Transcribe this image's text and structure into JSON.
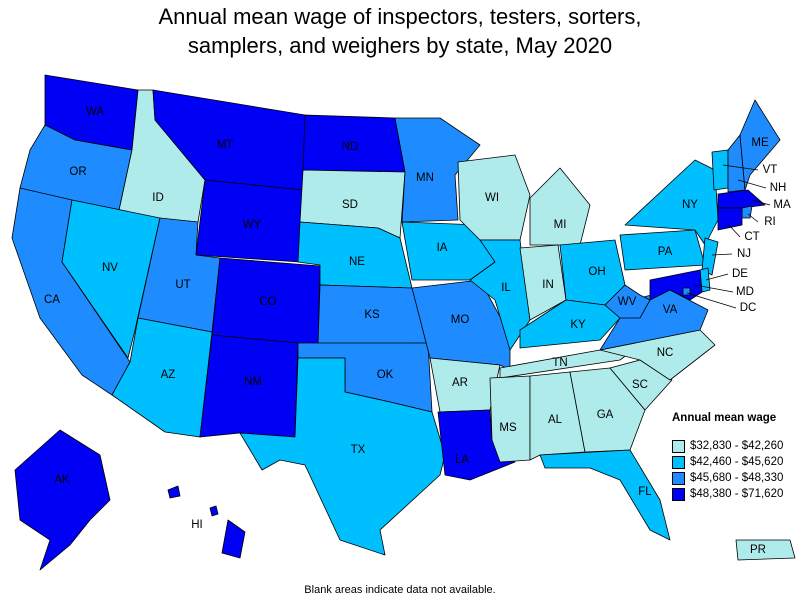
{
  "title": {
    "line1": "Annual mean wage of inspectors, testers, sorters,",
    "line2": "samplers, and weighers by state, May 2020"
  },
  "legend": {
    "title": "Annual mean wage",
    "bins": [
      {
        "label": "$32,830 - $42,260",
        "color": "#b0ebeb"
      },
      {
        "label": "$42,460 - $45,620",
        "color": "#00bfff"
      },
      {
        "label": "$45,680 - $48,330",
        "color": "#1e8cff"
      },
      {
        "label": "$48,380 - $71,620",
        "color": "#0000f5"
      }
    ]
  },
  "footnote": "Blank areas indicate data not available.",
  "chart_data": {
    "type": "choropleth",
    "states": [
      {
        "code": "WA",
        "bin": 3
      },
      {
        "code": "OR",
        "bin": 2
      },
      {
        "code": "CA",
        "bin": 2
      },
      {
        "code": "ID",
        "bin": 0
      },
      {
        "code": "NV",
        "bin": 1
      },
      {
        "code": "MT",
        "bin": 3
      },
      {
        "code": "WY",
        "bin": 3
      },
      {
        "code": "UT",
        "bin": 2
      },
      {
        "code": "AZ",
        "bin": 1
      },
      {
        "code": "CO",
        "bin": 3
      },
      {
        "code": "NM",
        "bin": 3
      },
      {
        "code": "ND",
        "bin": 3
      },
      {
        "code": "SD",
        "bin": 0
      },
      {
        "code": "NE",
        "bin": 1
      },
      {
        "code": "KS",
        "bin": 2
      },
      {
        "code": "OK",
        "bin": 2
      },
      {
        "code": "TX",
        "bin": 1
      },
      {
        "code": "MN",
        "bin": 2
      },
      {
        "code": "IA",
        "bin": 1
      },
      {
        "code": "MO",
        "bin": 2
      },
      {
        "code": "AR",
        "bin": 0
      },
      {
        "code": "LA",
        "bin": 3
      },
      {
        "code": "WI",
        "bin": 0
      },
      {
        "code": "IL",
        "bin": 1
      },
      {
        "code": "MI",
        "bin": 0
      },
      {
        "code": "IN",
        "bin": 0
      },
      {
        "code": "OH",
        "bin": 1
      },
      {
        "code": "KY",
        "bin": 1
      },
      {
        "code": "TN",
        "bin": 0
      },
      {
        "code": "MS",
        "bin": 0
      },
      {
        "code": "AL",
        "bin": 0
      },
      {
        "code": "GA",
        "bin": 0
      },
      {
        "code": "FL",
        "bin": 1
      },
      {
        "code": "SC",
        "bin": 0
      },
      {
        "code": "NC",
        "bin": 0
      },
      {
        "code": "VA",
        "bin": 2
      },
      {
        "code": "WV",
        "bin": 2
      },
      {
        "code": "PA",
        "bin": 1
      },
      {
        "code": "NY",
        "bin": 1
      },
      {
        "code": "VT",
        "bin": 1
      },
      {
        "code": "NH",
        "bin": 2
      },
      {
        "code": "ME",
        "bin": 2
      },
      {
        "code": "MA",
        "bin": 3
      },
      {
        "code": "RI",
        "bin": 2
      },
      {
        "code": "CT",
        "bin": 3
      },
      {
        "code": "NJ",
        "bin": 1
      },
      {
        "code": "DE",
        "bin": 1
      },
      {
        "code": "MD",
        "bin": 3
      },
      {
        "code": "DC",
        "bin": 2
      },
      {
        "code": "AK",
        "bin": 3
      },
      {
        "code": "HI",
        "bin": 3
      },
      {
        "code": "PR",
        "bin": 0
      }
    ]
  }
}
